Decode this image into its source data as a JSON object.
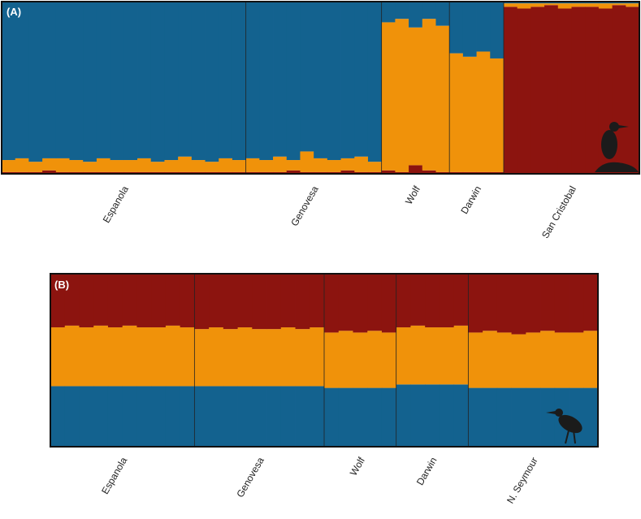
{
  "chart_data": [
    {
      "type": "bar",
      "stacked": true,
      "panel_label": "(A)",
      "colors": [
        "#8c140f",
        "#f0920a",
        "#13628f"
      ],
      "ylim": [
        0,
        1
      ],
      "groups": [
        {
          "label": "Espanola",
          "individuals": [
            [
              0.01,
              0.07,
              0.92
            ],
            [
              0.01,
              0.08,
              0.91
            ],
            [
              0.01,
              0.06,
              0.93
            ],
            [
              0.02,
              0.07,
              0.91
            ],
            [
              0.01,
              0.08,
              0.91
            ],
            [
              0.01,
              0.07,
              0.92
            ],
            [
              0.01,
              0.06,
              0.93
            ],
            [
              0.01,
              0.08,
              0.91
            ],
            [
              0.01,
              0.07,
              0.92
            ],
            [
              0.01,
              0.07,
              0.92
            ],
            [
              0.01,
              0.08,
              0.91
            ],
            [
              0.01,
              0.06,
              0.93
            ],
            [
              0.01,
              0.07,
              0.92
            ],
            [
              0.01,
              0.09,
              0.9
            ],
            [
              0.01,
              0.07,
              0.92
            ],
            [
              0.01,
              0.06,
              0.93
            ],
            [
              0.01,
              0.08,
              0.91
            ],
            [
              0.01,
              0.07,
              0.92
            ]
          ]
        },
        {
          "label": "Genovesa",
          "individuals": [
            [
              0.01,
              0.08,
              0.91
            ],
            [
              0.01,
              0.07,
              0.92
            ],
            [
              0.01,
              0.09,
              0.9
            ],
            [
              0.02,
              0.06,
              0.92
            ],
            [
              0.01,
              0.12,
              0.87
            ],
            [
              0.01,
              0.08,
              0.91
            ],
            [
              0.01,
              0.07,
              0.92
            ],
            [
              0.02,
              0.07,
              0.91
            ],
            [
              0.01,
              0.09,
              0.9
            ],
            [
              0.01,
              0.06,
              0.93
            ]
          ]
        },
        {
          "label": "Wolf",
          "individuals": [
            [
              0.02,
              0.86,
              0.12
            ],
            [
              0.01,
              0.89,
              0.1
            ],
            [
              0.05,
              0.8,
              0.15
            ],
            [
              0.02,
              0.88,
              0.1
            ],
            [
              0.01,
              0.85,
              0.14
            ]
          ]
        },
        {
          "label": "Darwin",
          "individuals": [
            [
              0.01,
              0.69,
              0.3
            ],
            [
              0.01,
              0.67,
              0.32
            ],
            [
              0.01,
              0.7,
              0.29
            ],
            [
              0.01,
              0.66,
              0.33
            ]
          ]
        },
        {
          "label": "San Cristobal",
          "individuals": [
            [
              0.97,
              0.02,
              0.01
            ],
            [
              0.96,
              0.03,
              0.01
            ],
            [
              0.97,
              0.02,
              0.01
            ],
            [
              0.98,
              0.01,
              0.01
            ],
            [
              0.96,
              0.03,
              0.01
            ],
            [
              0.97,
              0.02,
              0.01
            ],
            [
              0.97,
              0.02,
              0.01
            ],
            [
              0.96,
              0.03,
              0.01
            ],
            [
              0.98,
              0.01,
              0.01
            ],
            [
              0.97,
              0.02,
              0.01
            ]
          ]
        }
      ]
    },
    {
      "type": "bar",
      "stacked": true,
      "panel_label": "(B)",
      "colors": [
        "#13628f",
        "#f0920a",
        "#8c140f"
      ],
      "ylim": [
        0,
        1
      ],
      "groups": [
        {
          "label": "Espanola",
          "individuals": [
            [
              0.35,
              0.34,
              0.31
            ],
            [
              0.35,
              0.35,
              0.3
            ],
            [
              0.35,
              0.34,
              0.31
            ],
            [
              0.35,
              0.35,
              0.3
            ],
            [
              0.35,
              0.34,
              0.31
            ],
            [
              0.35,
              0.35,
              0.3
            ],
            [
              0.35,
              0.34,
              0.31
            ],
            [
              0.35,
              0.34,
              0.31
            ],
            [
              0.35,
              0.35,
              0.3
            ],
            [
              0.35,
              0.34,
              0.31
            ]
          ]
        },
        {
          "label": "Genovesa",
          "individuals": [
            [
              0.35,
              0.33,
              0.32
            ],
            [
              0.35,
              0.34,
              0.31
            ],
            [
              0.35,
              0.33,
              0.32
            ],
            [
              0.35,
              0.34,
              0.31
            ],
            [
              0.35,
              0.33,
              0.32
            ],
            [
              0.35,
              0.33,
              0.32
            ],
            [
              0.35,
              0.34,
              0.31
            ],
            [
              0.35,
              0.33,
              0.32
            ],
            [
              0.35,
              0.34,
              0.31
            ]
          ]
        },
        {
          "label": "Wolf",
          "individuals": [
            [
              0.34,
              0.32,
              0.34
            ],
            [
              0.34,
              0.33,
              0.33
            ],
            [
              0.34,
              0.32,
              0.34
            ],
            [
              0.34,
              0.33,
              0.33
            ],
            [
              0.34,
              0.32,
              0.34
            ]
          ]
        },
        {
          "label": "Darwin",
          "individuals": [
            [
              0.36,
              0.33,
              0.31
            ],
            [
              0.36,
              0.34,
              0.3
            ],
            [
              0.36,
              0.33,
              0.31
            ],
            [
              0.36,
              0.33,
              0.31
            ],
            [
              0.36,
              0.34,
              0.3
            ]
          ]
        },
        {
          "label": "N. Seymour",
          "individuals": [
            [
              0.34,
              0.32,
              0.34
            ],
            [
              0.34,
              0.33,
              0.33
            ],
            [
              0.34,
              0.32,
              0.34
            ],
            [
              0.34,
              0.31,
              0.35
            ],
            [
              0.34,
              0.32,
              0.34
            ],
            [
              0.34,
              0.33,
              0.33
            ],
            [
              0.34,
              0.32,
              0.34
            ],
            [
              0.34,
              0.32,
              0.34
            ],
            [
              0.34,
              0.33,
              0.33
            ]
          ]
        }
      ]
    }
  ]
}
